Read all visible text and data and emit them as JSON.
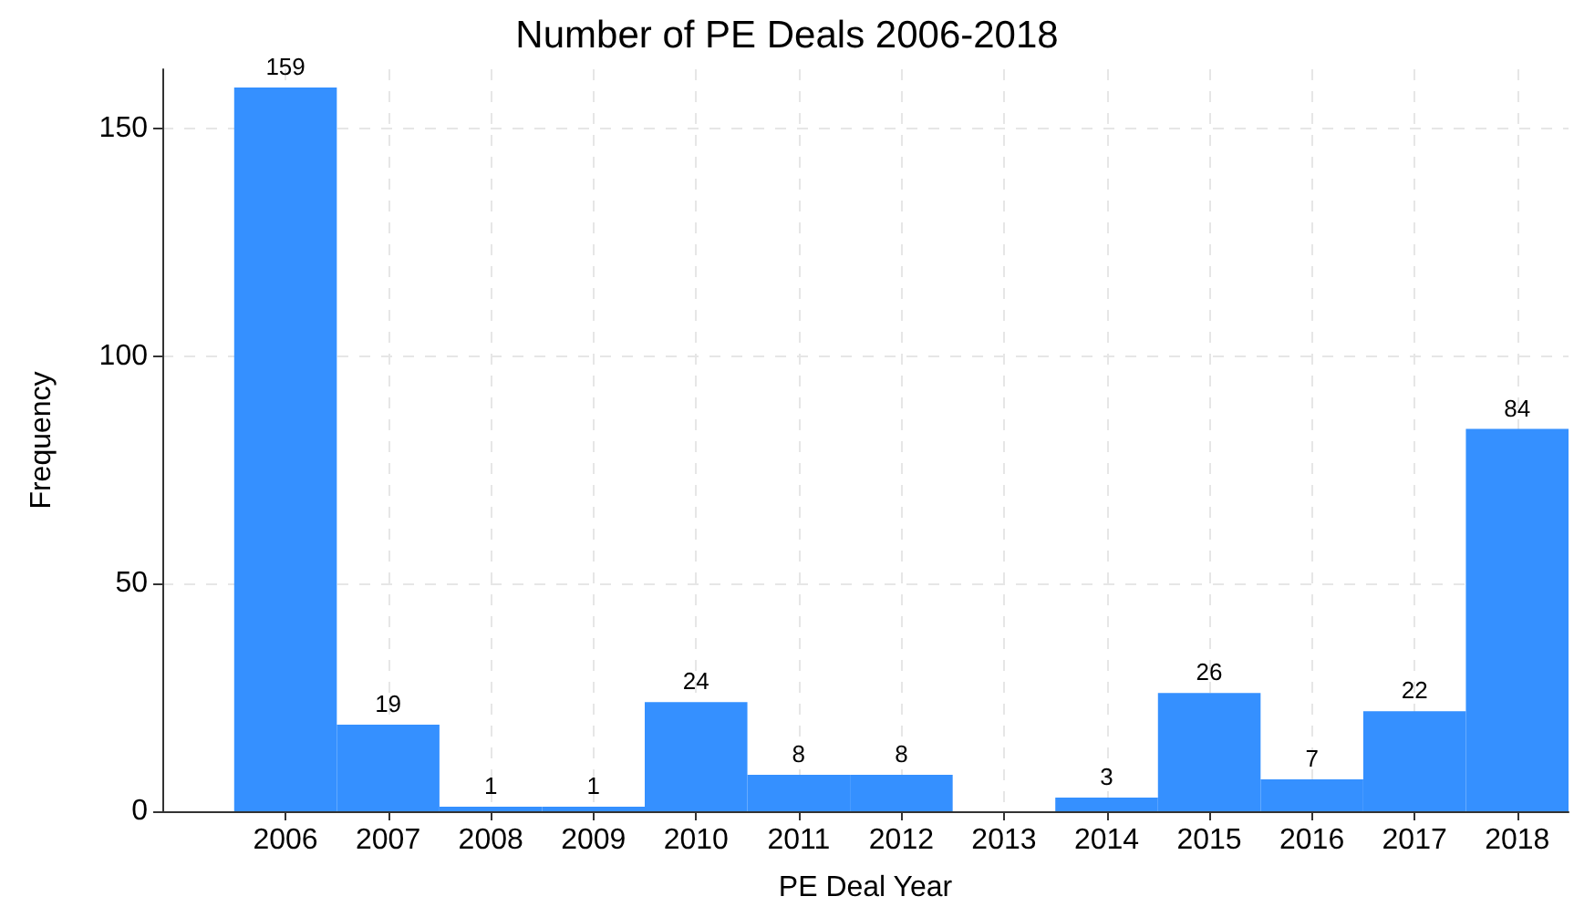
{
  "chart_data": {
    "type": "histogram",
    "title": "Number of PE Deals 2006-2018",
    "xlabel": "PE Deal Year",
    "ylabel": "Frequency",
    "bins": [
      2005.5,
      2006.5,
      2007.5,
      2008.5,
      2009.5,
      2010.5,
      2011.5,
      2012.5,
      2013.5,
      2014.5,
      2015.5,
      2016.5,
      2017.5,
      2018.5
    ],
    "values": [
      159,
      19,
      1,
      1,
      24,
      8,
      8,
      0,
      3,
      26,
      7,
      22,
      84
    ],
    "value_labels": [
      "159",
      "19",
      "1",
      "1",
      "24",
      "8",
      "8",
      null,
      "3",
      "26",
      "7",
      "22",
      "84"
    ],
    "color": "#3590ff",
    "xlim": [
      2004.8,
      2018.5
    ],
    "xticks": [
      2006,
      2007,
      2008,
      2009,
      2010,
      2011,
      2012,
      2013,
      2014,
      2015,
      2016,
      2017,
      2018
    ],
    "ylim": [
      0,
      163
    ],
    "yticks": [
      0,
      50,
      100,
      150
    ],
    "grid": true
  }
}
